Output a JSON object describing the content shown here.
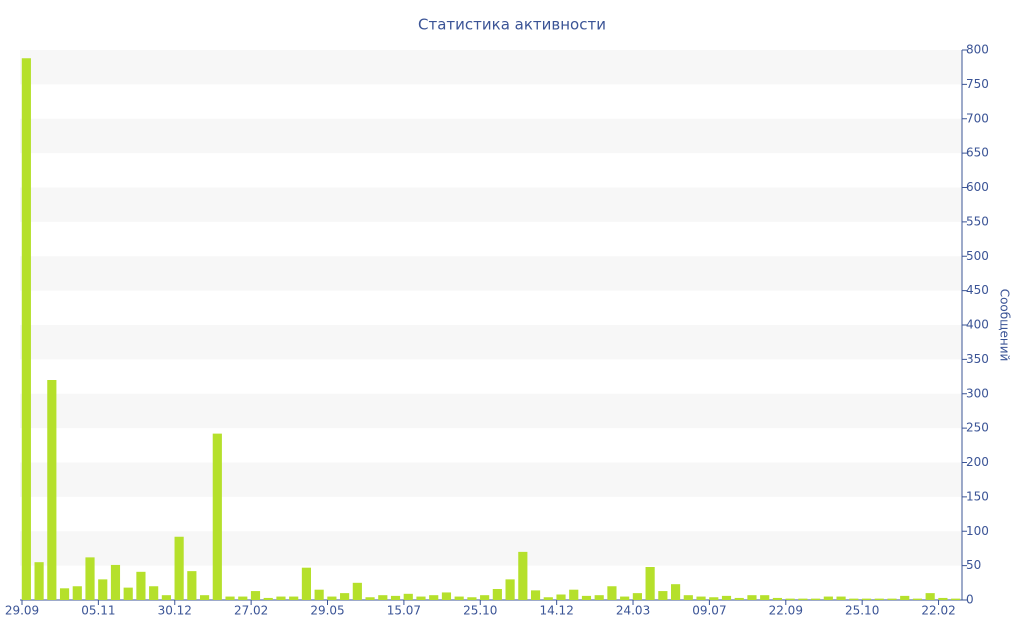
{
  "chart_data": {
    "type": "bar",
    "title": "Статистика активности",
    "y_axis_label": "Сообщений",
    "y_axis_side": "right",
    "color": "#b5e02b",
    "grid": true,
    "categories": [
      "29.09",
      null,
      null,
      null,
      null,
      null,
      "05.11",
      null,
      null,
      null,
      null,
      null,
      "30.12",
      null,
      null,
      null,
      null,
      null,
      "27.02",
      null,
      null,
      null,
      null,
      null,
      "29.05",
      null,
      null,
      null,
      null,
      null,
      "15.07",
      null,
      null,
      null,
      null,
      null,
      "25.10",
      null,
      null,
      null,
      null,
      null,
      "14.12",
      null,
      null,
      null,
      null,
      null,
      "24.03",
      null,
      null,
      null,
      null,
      null,
      "09.07",
      null,
      null,
      null,
      null,
      null,
      "22.09",
      null,
      null,
      null,
      null,
      null,
      "25.10",
      null,
      null,
      null,
      null,
      null,
      "22.02",
      null
    ],
    "values": [
      788,
      55,
      320,
      17,
      20,
      62,
      30,
      51,
      18,
      41,
      20,
      7,
      92,
      42,
      7,
      242,
      5,
      5,
      13,
      3,
      5,
      5,
      47,
      15,
      5,
      10,
      25,
      4,
      7,
      6,
      9,
      5,
      7,
      11,
      5,
      4,
      7,
      16,
      30,
      70,
      14,
      4,
      8,
      15,
      6,
      7,
      20,
      5,
      10,
      48,
      13,
      23,
      7,
      5,
      4,
      6,
      3,
      7,
      7,
      3,
      2,
      2,
      2,
      5,
      5,
      2,
      2,
      2,
      2,
      6,
      2,
      10,
      3,
      2
    ],
    "ylim": [
      0,
      800
    ],
    "yticks": [
      0,
      50,
      100,
      150,
      200,
      250,
      300,
      350,
      400,
      450,
      500,
      550,
      600,
      650,
      700,
      750,
      800
    ]
  }
}
